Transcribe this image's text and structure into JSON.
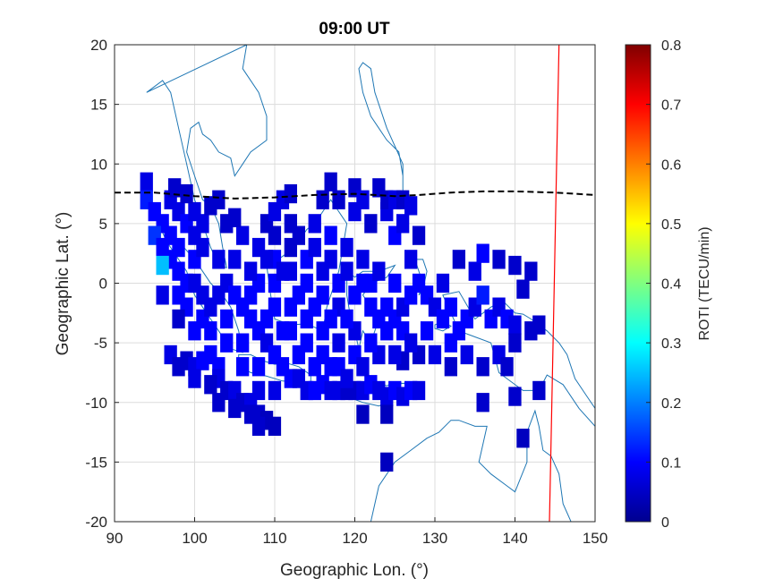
{
  "chart_data": {
    "type": "heatmap",
    "title": "09:00 UT",
    "xlabel": "Geographic Lon. (°)",
    "ylabel": "Geographic Lat. (°)",
    "xlim": [
      90,
      150
    ],
    "ylim": [
      -20,
      20
    ],
    "x_ticks": [
      "90",
      "100",
      "110",
      "120",
      "130",
      "140",
      "150"
    ],
    "y_ticks": [
      "-20",
      "-15",
      "-10",
      "-5",
      "0",
      "5",
      "10",
      "15",
      "20"
    ],
    "grid": true,
    "colorbar": {
      "label": "ROTI (TECU/min)",
      "range": [
        0,
        0.8
      ],
      "ticks": [
        "0",
        "0.1",
        "0.2",
        "0.3",
        "0.4",
        "0.5",
        "0.6",
        "0.7",
        "0.8"
      ],
      "colormap": "jet"
    },
    "magnetic_equator_dashed": {
      "color": "#000000",
      "points": [
        [
          90,
          7.6
        ],
        [
          95,
          7.6
        ],
        [
          100,
          7.3
        ],
        [
          105,
          7.1
        ],
        [
          110,
          7.2
        ],
        [
          115,
          7.4
        ],
        [
          120,
          7.5
        ],
        [
          125,
          7.3
        ],
        [
          128,
          7.4
        ],
        [
          132,
          7.6
        ],
        [
          136,
          7.7
        ],
        [
          140,
          7.7
        ],
        [
          145,
          7.6
        ],
        [
          150,
          7.4
        ]
      ]
    },
    "red_line": {
      "color": "#ff0000",
      "points": [
        [
          145.5,
          20
        ],
        [
          145.2,
          10
        ],
        [
          144.9,
          0
        ],
        [
          144.6,
          -10
        ],
        [
          144.3,
          -20
        ]
      ]
    },
    "roti_cells": [
      [
        94,
        8.5,
        0.08
      ],
      [
        94,
        7,
        0.12
      ],
      [
        95,
        6,
        0.1
      ],
      [
        96,
        5,
        0.1
      ],
      [
        95,
        4,
        0.14
      ],
      [
        96,
        3,
        0.1
      ],
      [
        97,
        2,
        0.1
      ],
      [
        96,
        1.5,
        0.25
      ],
      [
        98,
        3,
        0.1
      ],
      [
        97,
        4,
        0.1
      ],
      [
        98,
        1,
        0.1
      ],
      [
        99,
        0,
        0.1
      ],
      [
        99,
        -2,
        0.1
      ],
      [
        98,
        -3,
        0.06
      ],
      [
        100,
        2,
        0.1
      ],
      [
        100,
        0,
        0.08
      ],
      [
        101,
        -1,
        0.08
      ],
      [
        101,
        -3,
        0.1
      ],
      [
        102,
        -4,
        0.1
      ],
      [
        102,
        -6,
        0.1
      ],
      [
        103,
        -7,
        0.1
      ],
      [
        99,
        -6.5,
        0.06
      ],
      [
        100,
        -7,
        0.08
      ],
      [
        101,
        -6.5,
        0.1
      ],
      [
        103,
        -8,
        0.08
      ],
      [
        104,
        -9,
        0.06
      ],
      [
        105,
        -9,
        0.08
      ],
      [
        106,
        -10,
        0.06
      ],
      [
        107,
        -10,
        0.08
      ],
      [
        108,
        -11,
        0.06
      ],
      [
        109,
        -11.5,
        0.05
      ],
      [
        110,
        -12,
        0.05
      ],
      [
        103,
        2,
        0.08
      ],
      [
        104,
        0,
        0.08
      ],
      [
        105,
        -1,
        0.1
      ],
      [
        106,
        -2,
        0.1
      ],
      [
        107,
        -3,
        0.1
      ],
      [
        108,
        -4,
        0.1
      ],
      [
        109,
        -5,
        0.08
      ],
      [
        110,
        -6,
        0.1
      ],
      [
        111,
        -7,
        0.1
      ],
      [
        112,
        -8,
        0.1
      ],
      [
        113,
        -8,
        0.08
      ],
      [
        114,
        -9,
        0.08
      ],
      [
        115,
        -9,
        0.1
      ],
      [
        116,
        -8.5,
        0.1
      ],
      [
        117,
        -9,
        0.08
      ],
      [
        118,
        -9,
        0.08
      ],
      [
        119,
        -9,
        0.06
      ],
      [
        120,
        -9,
        0.06
      ],
      [
        121,
        -9,
        0.08
      ],
      [
        122,
        -8.5,
        0.1
      ],
      [
        123,
        -9,
        0.08
      ],
      [
        124,
        -9.5,
        0.08
      ],
      [
        125,
        -9,
        0.1
      ],
      [
        126,
        -9.5,
        0.08
      ],
      [
        127,
        -9,
        0.1
      ],
      [
        106,
        4,
        0.08
      ],
      [
        108,
        3,
        0.08
      ],
      [
        110,
        2,
        0.1
      ],
      [
        110,
        4,
        0.06
      ],
      [
        112,
        1,
        0.08
      ],
      [
        112,
        3,
        0.06
      ],
      [
        114,
        2,
        0.1
      ],
      [
        114,
        0,
        0.1
      ],
      [
        116,
        1,
        0.08
      ],
      [
        116,
        -1,
        0.1
      ],
      [
        118,
        0,
        0.1
      ],
      [
        118,
        -2,
        0.08
      ],
      [
        108,
        0,
        0.1
      ],
      [
        110,
        0,
        0.1
      ],
      [
        110,
        -2,
        0.1
      ],
      [
        112,
        -2,
        0.1
      ],
      [
        112,
        -4,
        0.1
      ],
      [
        114,
        -3,
        0.1
      ],
      [
        114,
        -5,
        0.1
      ],
      [
        116,
        -4,
        0.1
      ],
      [
        116,
        -6,
        0.1
      ],
      [
        118,
        -5,
        0.08
      ],
      [
        118,
        -7,
        0.1
      ],
      [
        120,
        -6,
        0.1
      ],
      [
        120,
        -4,
        0.08
      ],
      [
        115,
        5,
        0.08
      ],
      [
        117,
        4,
        0.1
      ],
      [
        119,
        3,
        0.08
      ],
      [
        121,
        2,
        0.08
      ],
      [
        122,
        0,
        0.1
      ],
      [
        122,
        -2,
        0.1
      ],
      [
        123,
        -3,
        0.1
      ],
      [
        124,
        -4,
        0.1
      ],
      [
        125,
        -3,
        0.1
      ],
      [
        126,
        -2,
        0.08
      ],
      [
        127,
        -1,
        0.1
      ],
      [
        120,
        6,
        0.08
      ],
      [
        122,
        5,
        0.06
      ],
      [
        124,
        6,
        0.08
      ],
      [
        125,
        4,
        0.1
      ],
      [
        126,
        5,
        0.08
      ],
      [
        128,
        4,
        0.06
      ],
      [
        127,
        2,
        0.08
      ],
      [
        128,
        0,
        0.1
      ],
      [
        129,
        -1,
        0.1
      ],
      [
        130,
        -2,
        0.08
      ],
      [
        131,
        -3,
        0.1
      ],
      [
        132,
        -2,
        0.1
      ],
      [
        133,
        -4,
        0.1
      ],
      [
        118,
        7,
        0.06
      ],
      [
        120,
        8,
        0.06
      ],
      [
        121,
        7,
        0.08
      ],
      [
        123,
        8,
        0.06
      ],
      [
        124,
        7,
        0.06
      ],
      [
        125,
        7,
        0.08
      ],
      [
        126,
        7,
        0.06
      ],
      [
        127,
        6.5,
        0.08
      ],
      [
        134,
        -3,
        0.1
      ],
      [
        135,
        -2,
        0.08
      ],
      [
        136,
        -1,
        0.12
      ],
      [
        137,
        -3,
        0.1
      ],
      [
        138,
        -2,
        0.08
      ],
      [
        139,
        -3,
        0.1
      ],
      [
        140,
        -3.5,
        0.08
      ],
      [
        142,
        -4,
        0.06
      ],
      [
        143,
        -3.5,
        0.06
      ],
      [
        131,
        0,
        0.08
      ],
      [
        133,
        2,
        0.06
      ],
      [
        135,
        1,
        0.08
      ],
      [
        136,
        2.5,
        0.1
      ],
      [
        138,
        2,
        0.06
      ],
      [
        140,
        1.5,
        0.06
      ],
      [
        142,
        1,
        0.06
      ],
      [
        141,
        -0.5,
        0.06
      ],
      [
        97,
        7,
        0.08
      ],
      [
        98,
        6,
        0.08
      ],
      [
        99,
        5,
        0.1
      ],
      [
        101,
        5,
        0.08
      ],
      [
        104,
        5,
        0.06
      ],
      [
        105,
        5.5,
        0.06
      ],
      [
        109,
        5,
        0.06
      ],
      [
        110,
        6,
        0.08
      ],
      [
        112,
        5,
        0.06
      ],
      [
        97.5,
        8,
        0.06
      ],
      [
        102,
        6.5,
        0.06
      ],
      [
        103,
        7,
        0.06
      ],
      [
        111,
        7,
        0.08
      ],
      [
        112,
        7.5,
        0.06
      ],
      [
        116,
        7,
        0.06
      ],
      [
        117,
        8.5,
        0.06
      ],
      [
        97,
        -6,
        0.08
      ],
      [
        98,
        -7,
        0.06
      ],
      [
        100,
        -8,
        0.08
      ],
      [
        102,
        -8.5,
        0.06
      ],
      [
        103,
        -10,
        0.06
      ],
      [
        105,
        -10.5,
        0.06
      ],
      [
        107,
        -11,
        0.06
      ],
      [
        108,
        -12,
        0.06
      ],
      [
        121,
        -11,
        0.05
      ],
      [
        124,
        -11,
        0.05
      ],
      [
        128,
        -9,
        0.08
      ],
      [
        130,
        -6,
        0.08
      ],
      [
        132,
        -7,
        0.06
      ],
      [
        134,
        -6,
        0.08
      ],
      [
        136,
        -7,
        0.06
      ],
      [
        138,
        -6,
        0.08
      ],
      [
        140,
        -5,
        0.06
      ],
      [
        139,
        -7,
        0.06
      ],
      [
        132,
        -5,
        0.1
      ],
      [
        129,
        -4,
        0.1
      ],
      [
        128,
        -6,
        0.06
      ],
      [
        126,
        -6.5,
        0.06
      ],
      [
        136,
        -10,
        0.06
      ],
      [
        140,
        -9.5,
        0.06
      ],
      [
        143,
        -9,
        0.06
      ],
      [
        141,
        -13,
        0.05
      ],
      [
        124,
        -15,
        0.05
      ],
      [
        104,
        -3,
        0.1
      ],
      [
        106,
        -5,
        0.1
      ],
      [
        106,
        -7,
        0.1
      ],
      [
        108,
        -7,
        0.1
      ],
      [
        108,
        -9,
        0.08
      ],
      [
        110,
        -9,
        0.08
      ],
      [
        104,
        -5,
        0.1
      ],
      [
        102,
        -2,
        0.08
      ],
      [
        103,
        -1,
        0.08
      ],
      [
        105,
        2,
        0.08
      ],
      [
        107,
        1,
        0.08
      ],
      [
        100,
        4,
        0.08
      ],
      [
        101,
        3,
        0.08
      ],
      [
        100,
        -4,
        0.1
      ],
      [
        98,
        -1,
        0.1
      ],
      [
        96,
        -1,
        0.08
      ],
      [
        100,
        6,
        0.08
      ],
      [
        99,
        7.5,
        0.06
      ],
      [
        113,
        4,
        0.06
      ],
      [
        115,
        3,
        0.08
      ],
      [
        117,
        2,
        0.08
      ],
      [
        119,
        1,
        0.08
      ],
      [
        121,
        0,
        0.1
      ],
      [
        120,
        -1,
        0.1
      ],
      [
        119,
        -3,
        0.1
      ],
      [
        117,
        -3,
        0.1
      ],
      [
        115,
        -2,
        0.1
      ],
      [
        113,
        -1,
        0.1
      ],
      [
        111,
        1,
        0.08
      ],
      [
        109,
        2,
        0.08
      ],
      [
        123,
        1,
        0.08
      ],
      [
        125,
        0,
        0.1
      ],
      [
        124,
        -2,
        0.1
      ],
      [
        126,
        -4,
        0.1
      ],
      [
        127,
        -5,
        0.08
      ],
      [
        125,
        -6,
        0.08
      ],
      [
        123,
        -6,
        0.08
      ],
      [
        122,
        -5,
        0.1
      ],
      [
        121,
        -7,
        0.08
      ],
      [
        119,
        -8,
        0.08
      ],
      [
        117,
        -7,
        0.1
      ],
      [
        115,
        -7,
        0.1
      ],
      [
        113,
        -6,
        0.1
      ],
      [
        111,
        -4,
        0.1
      ],
      [
        109,
        -3,
        0.1
      ],
      [
        107,
        -1,
        0.1
      ]
    ]
  }
}
